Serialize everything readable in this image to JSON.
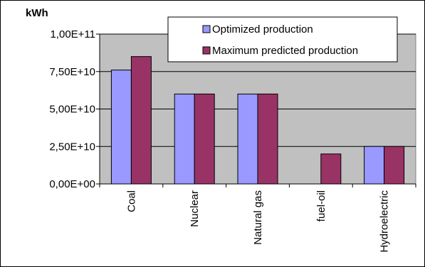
{
  "chart_data": {
    "type": "bar",
    "ylabel": "kWh",
    "categories": [
      "Coal",
      "Nuclear",
      "Natural gas",
      "fuel-oil",
      "Hydroelectric"
    ],
    "series": [
      {
        "name": "Optimized production",
        "values": [
          76000000000,
          60000000000,
          60000000000,
          0,
          25000000000
        ],
        "color": "#9999ff"
      },
      {
        "name": "Maximum predicted production",
        "values": [
          85000000000,
          60000000000,
          60000000000,
          20000000000,
          25000000000
        ],
        "color": "#993366"
      }
    ],
    "ylim": [
      0,
      100000000000
    ],
    "yticks": [
      {
        "value": 0,
        "label": "0,00E+00"
      },
      {
        "value": 25000000000,
        "label": "2,50E+10"
      },
      {
        "value": 50000000000,
        "label": "5,00E+10"
      },
      {
        "value": 75000000000,
        "label": "7,50E+10"
      },
      {
        "value": 100000000000,
        "label": "1,00E+11"
      }
    ],
    "grid": true,
    "legend_position": "top-right",
    "plot_background": "#c0c0c0"
  }
}
